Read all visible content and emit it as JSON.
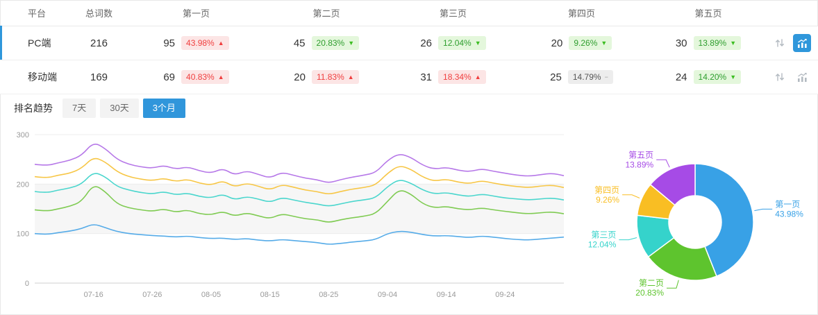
{
  "colors": {
    "accent_blue": "#2f97db",
    "badge_up_text": "#f03e3e",
    "badge_up_bg": "#fce5e5",
    "badge_down_text": "#2e9e2e",
    "badge_down_bg": "#e4f7dc",
    "badge_flat_bg": "#ededed",
    "grid_band": "#f6f6f6"
  },
  "glyphs": {
    "up": "▲",
    "down": "▼",
    "flat": "−"
  },
  "table": {
    "headers": [
      "平台",
      "总词数",
      "第一页",
      "第二页",
      "第三页",
      "第四页",
      "第五页"
    ],
    "rows": [
      {
        "platform": "PC端",
        "total": "216",
        "selected": true,
        "pages": [
          {
            "count": "95",
            "pct": "43.98%",
            "dir": "up"
          },
          {
            "count": "45",
            "pct": "20.83%",
            "dir": "down"
          },
          {
            "count": "26",
            "pct": "12.04%",
            "dir": "down"
          },
          {
            "count": "20",
            "pct": "9.26%",
            "dir": "down"
          },
          {
            "count": "30",
            "pct": "13.89%",
            "dir": "down"
          }
        ]
      },
      {
        "platform": "移动端",
        "total": "169",
        "selected": false,
        "pages": [
          {
            "count": "69",
            "pct": "40.83%",
            "dir": "up"
          },
          {
            "count": "20",
            "pct": "11.83%",
            "dir": "up"
          },
          {
            "count": "31",
            "pct": "18.34%",
            "dir": "up"
          },
          {
            "count": "25",
            "pct": "14.79%",
            "dir": "flat"
          },
          {
            "count": "24",
            "pct": "14.20%",
            "dir": "down"
          }
        ]
      }
    ]
  },
  "trend": {
    "label": "排名趋势",
    "tabs": [
      {
        "label": "7天",
        "active": false
      },
      {
        "label": "30天",
        "active": false
      },
      {
        "label": "3个月",
        "active": true
      }
    ]
  },
  "chart_data": [
    {
      "type": "line",
      "title": "排名趋势",
      "ylim": [
        0,
        300
      ],
      "y_ticks": [
        0,
        100,
        200,
        300
      ],
      "x_ticks": [
        "07-16",
        "07-26",
        "08-05",
        "08-15",
        "08-25",
        "09-04",
        "09-14",
        "09-24"
      ],
      "x_tick_indices": [
        5,
        10,
        15,
        20,
        25,
        30,
        35,
        40
      ],
      "grid": true,
      "legend": "none",
      "series": [
        {
          "name": "第一页",
          "color": "#55abe8",
          "values": [
            100,
            98,
            102,
            105,
            110,
            120,
            112,
            104,
            100,
            98,
            96,
            95,
            93,
            95,
            92,
            90,
            91,
            88,
            90,
            87,
            85,
            88,
            86,
            84,
            82,
            78,
            80,
            83,
            85,
            88,
            100,
            105,
            103,
            98,
            95,
            96,
            94,
            92,
            95,
            93,
            90,
            88,
            87,
            89,
            91,
            93
          ]
        },
        {
          "name": "第二页",
          "color": "#7fcb52",
          "values": [
            148,
            145,
            150,
            155,
            165,
            200,
            185,
            160,
            152,
            148,
            145,
            150,
            143,
            148,
            140,
            138,
            145,
            135,
            142,
            136,
            130,
            140,
            135,
            130,
            128,
            122,
            128,
            132,
            135,
            140,
            165,
            190,
            180,
            160,
            152,
            155,
            150,
            148,
            152,
            148,
            145,
            142,
            140,
            142,
            144,
            140
          ]
        },
        {
          "name": "第三页",
          "color": "#4ad6cd",
          "values": [
            185,
            182,
            188,
            192,
            200,
            225,
            215,
            195,
            188,
            183,
            180,
            185,
            178,
            182,
            175,
            172,
            180,
            168,
            175,
            170,
            163,
            173,
            168,
            163,
            160,
            155,
            160,
            165,
            168,
            172,
            195,
            210,
            202,
            188,
            180,
            183,
            178,
            175,
            180,
            176,
            172,
            170,
            168,
            170,
            172,
            168
          ]
        },
        {
          "name": "第四页",
          "color": "#f7c645",
          "values": [
            215,
            212,
            218,
            222,
            232,
            255,
            245,
            225,
            215,
            210,
            207,
            212,
            205,
            210,
            202,
            198,
            207,
            194,
            202,
            196,
            188,
            199,
            194,
            188,
            185,
            179,
            185,
            190,
            193,
            198,
            222,
            238,
            230,
            214,
            206,
            210,
            204,
            201,
            207,
            202,
            198,
            195,
            193,
            196,
            198,
            193
          ]
        },
        {
          "name": "第五页",
          "color": "#b678e8",
          "values": [
            240,
            237,
            243,
            248,
            258,
            285,
            272,
            250,
            240,
            235,
            232,
            238,
            230,
            235,
            227,
            222,
            232,
            218,
            227,
            220,
            212,
            224,
            218,
            212,
            209,
            202,
            209,
            214,
            218,
            223,
            248,
            262,
            254,
            238,
            230,
            234,
            228,
            225,
            231,
            226,
            222,
            218,
            216,
            219,
            222,
            217
          ]
        }
      ]
    },
    {
      "type": "pie",
      "donut": true,
      "slices": [
        {
          "label": "第一页",
          "value": 43.98,
          "pct": "43.98%",
          "color": "#38a1e6"
        },
        {
          "label": "第二页",
          "value": 20.83,
          "pct": "20.83%",
          "color": "#5ec42e"
        },
        {
          "label": "第三页",
          "value": 12.04,
          "pct": "12.04%",
          "color": "#35d3cb"
        },
        {
          "label": "第四页",
          "value": 9.26,
          "pct": "9.26%",
          "color": "#f9be23"
        },
        {
          "label": "第五页",
          "value": 13.89,
          "pct": "13.89%",
          "color": "#a64be6"
        }
      ]
    }
  ]
}
